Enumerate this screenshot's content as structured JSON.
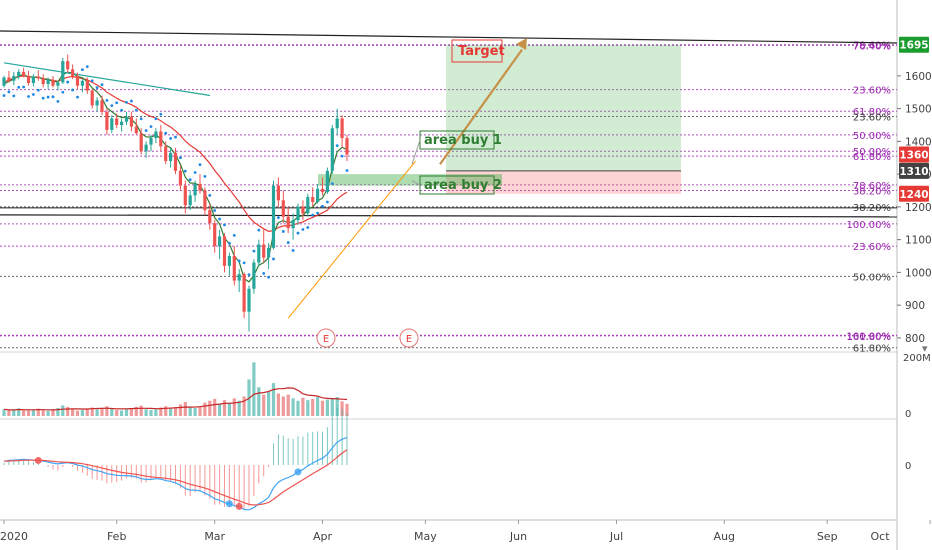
{
  "chart_data": {
    "type": "candlestick",
    "price_axis": {
      "min": 760,
      "max": 1740,
      "ticks": [
        800,
        900,
        1000,
        1100,
        1200,
        1300,
        1400,
        1500,
        1600
      ]
    },
    "time_axis": {
      "labels": [
        {
          "text": "2020",
          "bar": 0
        },
        {
          "text": "Feb",
          "bar": 23
        },
        {
          "text": "Mar",
          "bar": 43
        },
        {
          "text": "Apr",
          "bar": 65
        },
        {
          "text": "May",
          "bar": 86
        },
        {
          "text": "Jun",
          "bar": 105
        },
        {
          "text": "Jul",
          "bar": 125
        },
        {
          "text": "Aug",
          "bar": 147
        },
        {
          "text": "Sep",
          "bar": 168
        },
        {
          "text": "Oct",
          "bar": 189
        }
      ]
    },
    "price_badges": [
      {
        "value": 1695,
        "text": "1695",
        "color": "#1a9c2e"
      },
      {
        "value": 1360,
        "text": "1360",
        "color": "#e53935"
      },
      {
        "value": 1310,
        "text": "1310",
        "color": "#424242"
      },
      {
        "value": 1240,
        "text": "1240",
        "color": "#e53935"
      }
    ],
    "fib_levels": [
      {
        "price": 1695,
        "text": "78.60%",
        "color": "#9c27b0"
      },
      {
        "price": 1693,
        "text": "76.40%",
        "color": "#9c27b0"
      },
      {
        "price": 1558,
        "text": "23.60%",
        "color": "#9c27b0"
      },
      {
        "price": 1492,
        "text": "61.80%",
        "color": "#9c27b0"
      },
      {
        "price": 1476,
        "text": "23.60%",
        "color": "#424242"
      },
      {
        "price": 1420,
        "text": "50.00%",
        "color": "#9c27b0"
      },
      {
        "price": 1370,
        "text": "50.00%",
        "color": "#9c27b0"
      },
      {
        "price": 1355,
        "text": "61.80%",
        "color": "#9c27b0"
      },
      {
        "price": 1267,
        "text": "78.60%",
        "color": "#9c27b0"
      },
      {
        "price": 1250,
        "text": "38.20%",
        "color": "#9c27b0"
      },
      {
        "price": 1200,
        "text": "38.20%",
        "color": "#424242"
      },
      {
        "price": 1148,
        "text": "100.00%",
        "color": "#9c27b0"
      },
      {
        "price": 1080,
        "text": "23.60%",
        "color": "#9c27b0"
      },
      {
        "price": 988,
        "text": "50.00%",
        "color": "#424242"
      },
      {
        "price": 808,
        "text": "100.00%",
        "color": "#9c27b0"
      },
      {
        "price": 806,
        "text": "161.80%",
        "color": "#9c27b0"
      },
      {
        "price": 770,
        "text": "61.80%",
        "color": "#424242"
      }
    ],
    "annotations": {
      "target": "Target",
      "area_buy_1": "area buy 1",
      "area_buy_2": "area buy 2",
      "earnings_marker": "E"
    },
    "volume_axis": {
      "labels": [
        "200M",
        "0"
      ]
    },
    "macd_axis": {
      "labels": [
        "0"
      ]
    },
    "candles": [
      [
        1570,
        1600,
        1565,
        1595
      ],
      [
        1595,
        1615,
        1580,
        1585
      ],
      [
        1585,
        1612,
        1572,
        1600
      ],
      [
        1600,
        1620,
        1590,
        1612
      ],
      [
        1612,
        1625,
        1595,
        1600
      ],
      [
        1600,
        1615,
        1570,
        1578
      ],
      [
        1578,
        1605,
        1568,
        1598
      ],
      [
        1598,
        1618,
        1585,
        1592
      ],
      [
        1592,
        1605,
        1565,
        1575
      ],
      [
        1575,
        1595,
        1560,
        1588
      ],
      [
        1588,
        1600,
        1565,
        1570
      ],
      [
        1570,
        1585,
        1555,
        1580
      ],
      [
        1580,
        1655,
        1575,
        1645
      ],
      [
        1645,
        1665,
        1610,
        1620
      ],
      [
        1620,
        1635,
        1590,
        1600
      ],
      [
        1600,
        1610,
        1560,
        1570
      ],
      [
        1570,
        1590,
        1550,
        1585
      ],
      [
        1585,
        1595,
        1545,
        1555
      ],
      [
        1555,
        1560,
        1500,
        1510
      ],
      [
        1510,
        1535,
        1490,
        1525
      ],
      [
        1525,
        1540,
        1480,
        1490
      ],
      [
        1490,
        1500,
        1420,
        1435
      ],
      [
        1435,
        1480,
        1425,
        1470
      ],
      [
        1470,
        1485,
        1440,
        1450
      ],
      [
        1450,
        1470,
        1430,
        1460
      ],
      [
        1460,
        1490,
        1450,
        1475
      ],
      [
        1475,
        1490,
        1430,
        1445
      ],
      [
        1445,
        1470,
        1420,
        1425
      ],
      [
        1425,
        1440,
        1360,
        1370
      ],
      [
        1370,
        1400,
        1350,
        1390
      ],
      [
        1390,
        1420,
        1370,
        1410
      ],
      [
        1410,
        1440,
        1395,
        1430
      ],
      [
        1430,
        1450,
        1370,
        1385
      ],
      [
        1385,
        1400,
        1330,
        1340
      ],
      [
        1340,
        1380,
        1320,
        1365
      ],
      [
        1365,
        1380,
        1300,
        1310
      ],
      [
        1310,
        1325,
        1250,
        1265
      ],
      [
        1265,
        1280,
        1180,
        1205
      ],
      [
        1205,
        1250,
        1190,
        1235
      ],
      [
        1235,
        1280,
        1215,
        1270
      ],
      [
        1270,
        1300,
        1240,
        1250
      ],
      [
        1250,
        1260,
        1175,
        1190
      ],
      [
        1190,
        1210,
        1130,
        1150
      ],
      [
        1150,
        1160,
        1060,
        1080
      ],
      [
        1080,
        1130,
        1040,
        1110
      ],
      [
        1110,
        1120,
        1000,
        1020
      ],
      [
        1020,
        1060,
        990,
        1050
      ],
      [
        1050,
        1080,
        960,
        975
      ],
      [
        975,
        1010,
        940,
        995
      ],
      [
        995,
        1000,
        860,
        880
      ],
      [
        880,
        960,
        820,
        950
      ],
      [
        950,
        1040,
        935,
        1030
      ],
      [
        1030,
        1100,
        1020,
        1085
      ],
      [
        1085,
        1130,
        1030,
        1045
      ],
      [
        1045,
        1090,
        1010,
        1075
      ],
      [
        1075,
        1280,
        1070,
        1265
      ],
      [
        1265,
        1290,
        1200,
        1220
      ],
      [
        1220,
        1250,
        1150,
        1170
      ],
      [
        1170,
        1200,
        1120,
        1135
      ],
      [
        1135,
        1180,
        1100,
        1160
      ],
      [
        1160,
        1210,
        1145,
        1200
      ],
      [
        1200,
        1220,
        1160,
        1180
      ],
      [
        1180,
        1240,
        1170,
        1230
      ],
      [
        1230,
        1260,
        1200,
        1215
      ],
      [
        1215,
        1270,
        1210,
        1255
      ],
      [
        1255,
        1290,
        1235,
        1245
      ],
      [
        1245,
        1320,
        1240,
        1310
      ],
      [
        1310,
        1450,
        1300,
        1440
      ],
      [
        1440,
        1500,
        1420,
        1470
      ],
      [
        1470,
        1480,
        1380,
        1410
      ],
      [
        1410,
        1420,
        1340,
        1360
      ]
    ],
    "series": [
      {
        "name": "",
        "color": "#e53935",
        "values": [
          1580,
          1588,
          1592,
          1598,
          1600,
          1598,
          1596,
          1595,
          1592,
          1589,
          1586,
          1583,
          1590,
          1596,
          1598,
          1595,
          1592,
          1588,
          1580,
          1572,
          1563,
          1550,
          1541,
          1532,
          1524,
          1518,
          1512,
          1504,
          1492,
          1483,
          1476,
          1471,
          1463,
          1452,
          1444,
          1432,
          1418,
          1401,
          1388,
          1378,
          1367,
          1350,
          1333,
          1311,
          1293,
          1272,
          1254,
          1234,
          1215,
          1191,
          1169,
          1153,
          1143,
          1133,
          1125,
          1128,
          1137,
          1142,
          1142,
          1145,
          1150,
          1154,
          1162,
          1168,
          1175,
          1182,
          1190,
          1206,
          1224,
          1236,
          1245
        ]
      },
      {
        "name": "",
        "color": "#2e7d32",
        "values": [
          1575,
          1583,
          1590,
          1600,
          1604,
          1596,
          1597,
          1596,
          1590,
          1589,
          1583,
          1582,
          1604,
          1611,
          1609,
          1598,
          1594,
          1582,
          1563,
          1551,
          1532,
          1502,
          1491,
          1479,
          1473,
          1474,
          1467,
          1452,
          1425,
          1414,
          1413,
          1419,
          1408,
          1388,
          1380,
          1359,
          1330,
          1291,
          1273,
          1272,
          1265,
          1240,
          1210,
          1167,
          1148,
          1105,
          1087,
          1050,
          1032,
          981,
          971,
          991,
          1022,
          1030,
          1045,
          1118,
          1152,
          1158,
          1151,
          1155,
          1170,
          1173,
          1192,
          1200,
          1218,
          1227,
          1255,
          1317,
          1368,
          1382,
          1375
        ]
      },
      {
        "name": "",
        "color": "#26a69a",
        "values": [
          1640,
          1638,
          1636,
          1634,
          1632,
          1630,
          1628,
          1626,
          1624,
          1622,
          1620,
          1618,
          1616,
          1614,
          1612,
          1610,
          1608,
          1606,
          1604,
          1602,
          1600,
          1598,
          1596,
          1594,
          1592,
          1590,
          1588,
          1586,
          1584,
          1582,
          1580,
          1578,
          1576,
          1574,
          1572,
          1570,
          1568,
          1566,
          1564,
          1562,
          1560,
          1558,
          1556,
          1554,
          1552,
          1550,
          1548,
          1546,
          1544,
          1542,
          1540,
          1538,
          1536,
          1534,
          1532,
          1530,
          1528,
          1526,
          1524,
          1522,
          1520,
          1518,
          1516,
          1514,
          1512,
          1510,
          1508,
          1506,
          1504,
          1502,
          1500
        ]
      }
    ],
    "volume": [
      22,
      18,
      20,
      25,
      19,
      18,
      21,
      24,
      19,
      17,
      20,
      26,
      35,
      30,
      22,
      18,
      20,
      24,
      28,
      22,
      26,
      32,
      24,
      20,
      18,
      22,
      26,
      30,
      34,
      22,
      20,
      22,
      28,
      32,
      24,
      30,
      38,
      46,
      30,
      26,
      30,
      44,
      50,
      56,
      40,
      52,
      44,
      58,
      50,
      64,
      120,
      176,
      94,
      70,
      80,
      108,
      74,
      64,
      70,
      58,
      50,
      60,
      52,
      56,
      62,
      50,
      54,
      58,
      62,
      48,
      40
    ],
    "macd": [
      0.1,
      0.12,
      0.13,
      0.14,
      0.15,
      0.14,
      0.13,
      0.12,
      0.1,
      0.08,
      0.05,
      0.03,
      0.05,
      0.06,
      0.04,
      0.0,
      -0.03,
      -0.07,
      -0.12,
      -0.15,
      -0.18,
      -0.23,
      -0.25,
      -0.27,
      -0.28,
      -0.28,
      -0.29,
      -0.31,
      -0.36,
      -0.38,
      -0.38,
      -0.36,
      -0.37,
      -0.41,
      -0.43,
      -0.47,
      -0.53,
      -0.62,
      -0.66,
      -0.66,
      -0.68,
      -0.74,
      -0.8,
      -0.89,
      -0.93,
      -0.99,
      -1.02,
      -1.07,
      -1.09,
      -1.17,
      -1.18,
      -1.12,
      -1.02,
      -0.95,
      -0.85,
      -0.6,
      -0.45,
      -0.38,
      -0.33,
      -0.27,
      -0.18,
      -0.12,
      -0.02,
      0.05,
      0.12,
      0.18,
      0.28,
      0.45,
      0.6,
      0.68,
      0.72
    ]
  }
}
